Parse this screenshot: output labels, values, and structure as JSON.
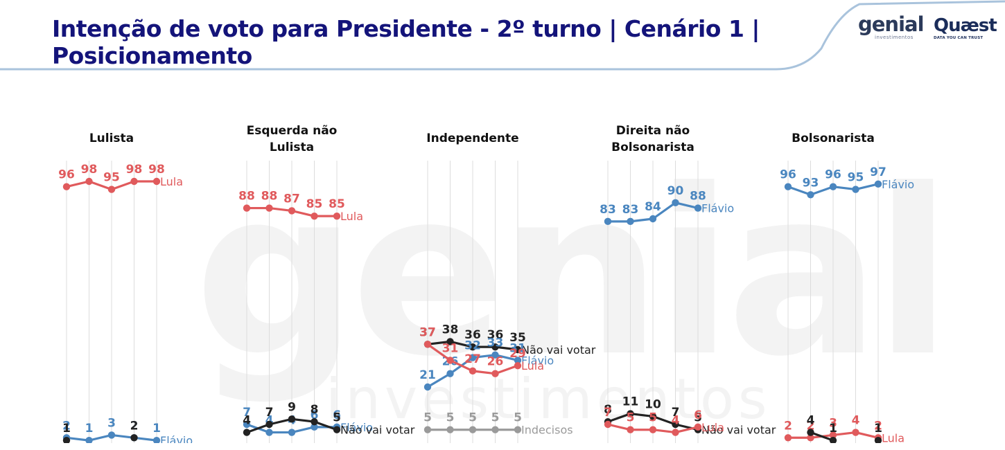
{
  "header": {
    "title": "Intenção de voto para Presidente - 2º turno | Cenário 1 | Posicionamento",
    "logo_genial": "genial",
    "logo_genial_sub": "investimentos",
    "logo_quaest": "Quæst",
    "logo_quaest_sub": "DATA YOU CAN TRUST"
  },
  "watermark": {
    "big": "genial",
    "small": "investimentos"
  },
  "colors": {
    "lula": "#e05a5c",
    "flavio": "#4a86bf",
    "nao_vai_votar": "#222222",
    "indecisos": "#9a9a9a",
    "title": "#14147a"
  },
  "chart_data": [
    {
      "type": "line",
      "title": "Lulista",
      "series": [
        {
          "name": "Lula",
          "color": "#e05a5c",
          "values": [
            96,
            98,
            95,
            98,
            98
          ]
        },
        {
          "name": "Flávio",
          "color": "#4a86bf",
          "values": [
            2,
            1,
            3,
            2,
            1
          ]
        },
        {
          "name": "",
          "color": "#222222",
          "values": [
            1,
            null,
            null,
            2,
            null
          ]
        }
      ]
    },
    {
      "type": "line",
      "title": "Esquerda não Lulista",
      "series": [
        {
          "name": "Lula",
          "color": "#e05a5c",
          "values": [
            88,
            88,
            87,
            85,
            85
          ]
        },
        {
          "name": "Flávio",
          "color": "#4a86bf",
          "values": [
            7,
            4,
            4,
            6,
            6
          ]
        },
        {
          "name": "Não vai votar",
          "color": "#222222",
          "values": [
            4,
            7,
            9,
            8,
            5
          ]
        }
      ]
    },
    {
      "type": "line",
      "title": "Independente",
      "series": [
        {
          "name": "Não vai votar",
          "color": "#222222",
          "values": [
            37,
            38,
            36,
            36,
            35
          ]
        },
        {
          "name": "Flávio",
          "color": "#4a86bf",
          "values": [
            21,
            26,
            32,
            33,
            31
          ]
        },
        {
          "name": "Lula",
          "color": "#e05a5c",
          "values": [
            37,
            31,
            27,
            26,
            29
          ]
        },
        {
          "name": "Indecisos",
          "color": "#9a9a9a",
          "values": [
            5,
            5,
            5,
            5,
            5
          ]
        }
      ]
    },
    {
      "type": "line",
      "title": "Direita não Bolsonarista",
      "series": [
        {
          "name": "Flávio",
          "color": "#4a86bf",
          "values": [
            83,
            83,
            84,
            90,
            88
          ]
        },
        {
          "name": "Não vai votar",
          "color": "#222222",
          "values": [
            8,
            11,
            10,
            7,
            5
          ]
        },
        {
          "name": "Lula",
          "color": "#e05a5c",
          "values": [
            7,
            5,
            5,
            4,
            6
          ]
        }
      ]
    },
    {
      "type": "line",
      "title": "Bolsonarista",
      "series": [
        {
          "name": "Flávio",
          "color": "#4a86bf",
          "values": [
            96,
            93,
            96,
            95,
            97
          ]
        },
        {
          "name": "Lula",
          "color": "#e05a5c",
          "values": [
            2,
            2,
            3,
            4,
            2
          ]
        },
        {
          "name": "",
          "color": "#222222",
          "values": [
            null,
            4,
            1,
            null,
            1
          ]
        }
      ]
    }
  ]
}
